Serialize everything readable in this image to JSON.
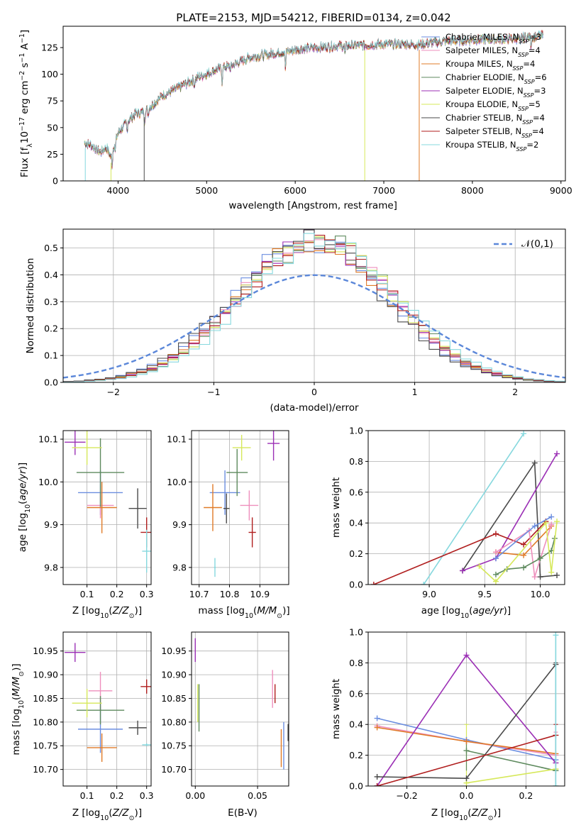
{
  "figure_title": "PLATE=2153, MJD=54212, FIBERID=0134, z=0.042",
  "colors": {
    "Chabrier MILES": "#6b8ee0",
    "Salpeter MILES": "#ee8fbd",
    "Kroupa MILES": "#e07b28",
    "Chabrier ELODIE": "#5e8a5e",
    "Salpeter ELODIE": "#9b2fb5",
    "Kroupa ELODIE": "#d6e85a",
    "Chabrier STELIB": "#4a4a4a",
    "Salpeter STELIB": "#b01e1e",
    "Kroupa STELIB": "#86d8de"
  },
  "models": [
    "Chabrier MILES",
    "Salpeter MILES",
    "Kroupa MILES",
    "Chabrier ELODIE",
    "Salpeter ELODIE",
    "Kroupa ELODIE",
    "Chabrier STELIB",
    "Salpeter STELIB",
    "Kroupa STELIB"
  ],
  "chart_data": [
    {
      "id": "spectrum",
      "type": "line",
      "xlabel": "wavelength [Angstrom, rest frame]",
      "ylabel": "Flux [f_λ10^-17 erg cm^-2 s^-1 A^-1]",
      "xlim": [
        3380,
        9050
      ],
      "ylim": [
        0,
        145
      ],
      "xticks": [
        4000,
        5000,
        6000,
        7000,
        8000,
        9000
      ],
      "yticks": [
        0,
        25,
        50,
        75,
        100,
        125
      ],
      "legend_position": "upper-right",
      "legend": [
        {
          "model": "Chabrier MILES",
          "label": "Chabrier MILES, N",
          "sub": "SSP",
          "tail": "=3"
        },
        {
          "model": "Salpeter MILES",
          "label": "Salpeter MILES, N",
          "sub": "SSP",
          "tail": "=4"
        },
        {
          "model": "Kroupa MILES",
          "label": "Kroupa MILES, N",
          "sub": "SSP",
          "tail": "=4"
        },
        {
          "model": "Chabrier ELODIE",
          "label": "Chabrier ELODIE, N",
          "sub": "SSP",
          "tail": "=6"
        },
        {
          "model": "Salpeter ELODIE",
          "label": "Salpeter ELODIE, N",
          "sub": "SSP",
          "tail": "=3"
        },
        {
          "model": "Kroupa ELODIE",
          "label": "Kroupa ELODIE, N",
          "sub": "SSP",
          "tail": "=5"
        },
        {
          "model": "Chabrier STELIB",
          "label": "Chabrier STELIB, N",
          "sub": "SSP",
          "tail": "=4"
        },
        {
          "model": "Salpeter STELIB",
          "label": "Salpeter STELIB, N",
          "sub": "SSP",
          "tail": "=4"
        },
        {
          "model": "Kroupa STELIB",
          "label": "Kroupa STELIB, N",
          "sub": "SSP",
          "tail": "=2"
        }
      ],
      "continuum_points": [
        [
          3620,
          36
        ],
        [
          3700,
          33
        ],
        [
          3800,
          27
        ],
        [
          3870,
          31
        ],
        [
          3920,
          22
        ],
        [
          3960,
          35
        ],
        [
          4000,
          45
        ],
        [
          4100,
          55
        ],
        [
          4200,
          63
        ],
        [
          4300,
          65
        ],
        [
          4400,
          72
        ],
        [
          4500,
          80
        ],
        [
          4700,
          88
        ],
        [
          4900,
          97
        ],
        [
          5100,
          104
        ],
        [
          5300,
          109
        ],
        [
          5500,
          116
        ],
        [
          5800,
          120
        ],
        [
          6100,
          124
        ],
        [
          6400,
          126
        ],
        [
          6700,
          127
        ],
        [
          7000,
          128
        ],
        [
          7400,
          128
        ],
        [
          7700,
          131
        ],
        [
          8000,
          132
        ],
        [
          8400,
          133
        ],
        [
          8800,
          136
        ]
      ],
      "absorption_features": [
        [
          3934,
          12
        ],
        [
          3969,
          10
        ],
        [
          4102,
          8
        ],
        [
          4300,
          10
        ],
        [
          4340,
          6
        ],
        [
          4861,
          6
        ],
        [
          5175,
          14
        ],
        [
          5270,
          6
        ],
        [
          5890,
          18
        ],
        [
          6563,
          8
        ],
        [
          8542,
          8
        ],
        [
          8662,
          8
        ]
      ],
      "vertical_spikes": [
        {
          "x": 3630,
          "model": "Kroupa STELIB"
        },
        {
          "x": 3920,
          "model": "Kroupa ELODIE"
        },
        {
          "x": 4295,
          "model": "Chabrier STELIB"
        },
        {
          "x": 6785,
          "model": "Kroupa ELODIE"
        },
        {
          "x": 7400,
          "model": "Kroupa MILES"
        }
      ]
    },
    {
      "id": "residuals",
      "type": "step-histogram",
      "xlabel": "(data-model)/error",
      "ylabel": "Normed distribution",
      "xlim": [
        -2.5,
        2.5
      ],
      "ylim": [
        0,
        0.57
      ],
      "xticks": [
        -2,
        -1,
        0,
        1,
        2
      ],
      "yticks": [
        0.0,
        0.1,
        0.2,
        0.3,
        0.4,
        0.5
      ],
      "bins": 50,
      "model_shift": [
        -0.05,
        0.02,
        -0.02,
        0.05,
        0.0,
        0.03,
        -0.06,
        0.04,
        0.1
      ],
      "reference_curve": {
        "label": "𝒩(0,1)",
        "mean": 0,
        "sigma": 1,
        "color": "#5b87d9",
        "style": "dashed"
      },
      "legend_position": "upper-right"
    },
    {
      "id": "age-vs-Z",
      "type": "errorbar",
      "xlabel": "Z [log10(Z/Z⊙)]",
      "ylabel": "age  [log10(age/yr)]",
      "xlim": [
        0.02,
        0.315
      ],
      "ylim": [
        9.76,
        10.12
      ],
      "xticks": [
        0.1,
        0.2,
        0.3
      ],
      "yticks": [
        9.8,
        9.9,
        10.0,
        10.1
      ],
      "points": [
        {
          "model": "Chabrier MILES",
          "x": 0.145,
          "xerr": 0.075,
          "y": 9.975,
          "yerr": 0.052
        },
        {
          "model": "Salpeter MILES",
          "x": 0.145,
          "xerr": 0.045,
          "y": 9.945,
          "yerr": 0.03
        },
        {
          "model": "Kroupa MILES",
          "x": 0.15,
          "xerr": 0.05,
          "y": 9.94,
          "yerr": 0.06
        },
        {
          "model": "Chabrier ELODIE",
          "x": 0.145,
          "xerr": 0.08,
          "y": 10.022,
          "yerr": 0.08
        },
        {
          "model": "Salpeter ELODIE",
          "x": 0.06,
          "xerr": 0.035,
          "y": 10.093,
          "yerr": 0.03
        },
        {
          "model": "Kroupa ELODIE",
          "x": 0.1,
          "xerr": 0.05,
          "y": 10.08,
          "yerr": 0.04
        },
        {
          "model": "Chabrier STELIB",
          "x": 0.27,
          "xerr": 0.03,
          "y": 9.938,
          "yerr": 0.047
        },
        {
          "model": "Salpeter STELIB",
          "x": 0.3,
          "xerr": 0.02,
          "y": 9.882,
          "yerr": 0.035
        },
        {
          "model": "Kroupa STELIB",
          "x": 0.3,
          "xerr": 0.015,
          "y": 9.838,
          "yerr": 0.05
        }
      ]
    },
    {
      "id": "age-vs-mass",
      "type": "errorbar",
      "xlabel": "mass [log10(M/M⊙)]",
      "ylabel": "",
      "xlim": [
        10.675,
        10.995
      ],
      "ylim": [
        9.76,
        10.12
      ],
      "xticks": [
        10.7,
        10.8,
        10.9
      ],
      "yticks": [
        9.8,
        9.9,
        10.0,
        10.1
      ],
      "points": [
        {
          "model": "Chabrier MILES",
          "x": 10.785,
          "xerr": 0.05,
          "y": 9.975,
          "yerr": 0.052
        },
        {
          "model": "Salpeter MILES",
          "x": 10.865,
          "xerr": 0.03,
          "y": 9.945,
          "yerr": 0.035
        },
        {
          "model": "Kroupa MILES",
          "x": 10.745,
          "xerr": 0.03,
          "y": 9.94,
          "yerr": 0.055
        },
        {
          "model": "Chabrier ELODIE",
          "x": 10.825,
          "xerr": 0.035,
          "y": 10.022,
          "yerr": 0.055
        },
        {
          "model": "Salpeter ELODIE",
          "x": 10.945,
          "xerr": 0.02,
          "y": 10.09,
          "yerr": 0.04
        },
        {
          "model": "Kroupa ELODIE",
          "x": 10.84,
          "xerr": 0.03,
          "y": 10.08,
          "yerr": 0.03
        },
        {
          "model": "Chabrier STELIB",
          "x": 10.79,
          "xerr": 0.01,
          "y": 9.938,
          "yerr": 0.035
        },
        {
          "model": "Salpeter STELIB",
          "x": 10.875,
          "xerr": 0.012,
          "y": 9.882,
          "yerr": 0.035
        },
        {
          "model": "Kroupa STELIB",
          "x": 10.752,
          "xerr": 0.003,
          "y": 9.8,
          "yerr": 0.022
        }
      ]
    },
    {
      "id": "weight-vs-age",
      "type": "line",
      "xlabel": "age  [log10(age/yr)]",
      "ylabel": "mass weight",
      "xlim": [
        8.45,
        10.22
      ],
      "ylim": [
        0.0,
        1.0
      ],
      "xticks": [
        9.0,
        9.5,
        10.0
      ],
      "yticks": [
        0.0,
        0.2,
        0.4,
        0.6,
        0.8,
        1.0
      ],
      "series": [
        {
          "model": "Kroupa STELIB",
          "x": [
            8.95,
            9.85
          ],
          "y": [
            0.0,
            0.98
          ]
        },
        {
          "model": "Chabrier STELIB",
          "x": [
            9.3,
            9.95,
            10.0,
            10.15
          ],
          "y": [
            0.09,
            0.79,
            0.05,
            0.06
          ]
        },
        {
          "model": "Salpeter ELODIE",
          "x": [
            9.3,
            9.6,
            10.15
          ],
          "y": [
            0.09,
            0.17,
            0.85
          ]
        },
        {
          "model": "Salpeter STELIB",
          "x": [
            8.5,
            9.6,
            9.85,
            10.05
          ],
          "y": [
            0.0,
            0.33,
            0.26,
            0.41
          ]
        },
        {
          "model": "Kroupa MILES",
          "x": [
            9.6,
            9.85,
            10.1
          ],
          "y": [
            0.21,
            0.19,
            0.38
          ]
        },
        {
          "model": "Salpeter MILES",
          "x": [
            9.6,
            9.9,
            9.95,
            10.1
          ],
          "y": [
            0.21,
            0.35,
            0.05,
            0.39
          ]
        },
        {
          "model": "Chabrier MILES",
          "x": [
            9.6,
            9.95,
            10.1
          ],
          "y": [
            0.17,
            0.38,
            0.44
          ]
        },
        {
          "model": "Chabrier ELODIE",
          "x": [
            9.6,
            9.7,
            9.85,
            10.0,
            10.1,
            10.13
          ],
          "y": [
            0.065,
            0.1,
            0.11,
            0.17,
            0.22,
            0.3
          ]
        },
        {
          "model": "Kroupa ELODIE",
          "x": [
            9.45,
            9.6,
            10.05,
            10.1,
            10.15
          ],
          "y": [
            0.12,
            0.02,
            0.4,
            0.08,
            0.41
          ]
        }
      ]
    },
    {
      "id": "mass-vs-Z",
      "type": "errorbar",
      "xlabel": "Z [log10(Z/Z⊙)]",
      "ylabel": "mass [log10(M/M⊙)]",
      "xlim": [
        0.02,
        0.315
      ],
      "ylim": [
        10.665,
        10.99
      ],
      "xticks": [
        0.1,
        0.2,
        0.3
      ],
      "yticks": [
        10.7,
        10.75,
        10.8,
        10.85,
        10.9,
        10.95
      ],
      "points": [
        {
          "model": "Chabrier MILES",
          "x": 0.145,
          "xerr": 0.075,
          "y": 10.785,
          "yerr": 0.05
        },
        {
          "model": "Salpeter MILES",
          "x": 0.145,
          "xerr": 0.04,
          "y": 10.866,
          "yerr": 0.04
        },
        {
          "model": "Kroupa MILES",
          "x": 0.15,
          "xerr": 0.05,
          "y": 10.746,
          "yerr": 0.03
        },
        {
          "model": "Chabrier ELODIE",
          "x": 0.145,
          "xerr": 0.08,
          "y": 10.825,
          "yerr": 0.03
        },
        {
          "model": "Salpeter ELODIE",
          "x": 0.06,
          "xerr": 0.035,
          "y": 10.947,
          "yerr": 0.02
        },
        {
          "model": "Kroupa ELODIE",
          "x": 0.1,
          "xerr": 0.05,
          "y": 10.84,
          "yerr": 0.03
        },
        {
          "model": "Chabrier STELIB",
          "x": 0.27,
          "xerr": 0.03,
          "y": 10.788,
          "yerr": 0.015
        },
        {
          "model": "Salpeter STELIB",
          "x": 0.3,
          "xerr": 0.02,
          "y": 10.875,
          "yerr": 0.015
        },
        {
          "model": "Kroupa STELIB",
          "x": 0.3,
          "xerr": 0.015,
          "y": 10.752,
          "yerr": 0.003
        }
      ]
    },
    {
      "id": "mass-vs-EBV",
      "type": "errorbar",
      "xlabel": "E(B-V)",
      "ylabel": "",
      "xlim": [
        -0.003,
        0.075
      ],
      "ylim": [
        10.665,
        10.99
      ],
      "xticks": [
        0.0,
        0.05
      ],
      "yticks": [
        10.7,
        10.75,
        10.8,
        10.85,
        10.9,
        10.95
      ],
      "points": [
        {
          "model": "Chabrier MILES",
          "x": 0.071,
          "xerr": 0.0,
          "y": 10.75,
          "yerr": 0.05
        },
        {
          "model": "Salpeter MILES",
          "x": 0.062,
          "xerr": 0.0,
          "y": 10.87,
          "yerr": 0.04
        },
        {
          "model": "Kroupa MILES",
          "x": 0.069,
          "xerr": 0.0,
          "y": 10.745,
          "yerr": 0.04
        },
        {
          "model": "Chabrier ELODIE",
          "x": 0.003,
          "xerr": 0.0,
          "y": 10.83,
          "yerr": 0.05
        },
        {
          "model": "Salpeter ELODIE",
          "x": 0.0,
          "xerr": 0.0,
          "y": 10.952,
          "yerr": 0.025
        },
        {
          "model": "Kroupa ELODIE",
          "x": 0.002,
          "xerr": 0.0,
          "y": 10.84,
          "yerr": 0.04
        },
        {
          "model": "Chabrier STELIB",
          "x": 0.0745,
          "xerr": 0.0,
          "y": 10.778,
          "yerr": 0.018
        },
        {
          "model": "Salpeter STELIB",
          "x": 0.064,
          "xerr": 0.0,
          "y": 10.86,
          "yerr": 0.02
        },
        {
          "model": "Kroupa STELIB",
          "x": 0.0755,
          "xerr": 0.0,
          "y": 10.752,
          "yerr": 0.003
        }
      ]
    },
    {
      "id": "weight-vs-Z",
      "type": "line",
      "xlabel": "Z [log10(Z/Z⊙)]",
      "ylabel": "mass weight",
      "xlim": [
        -0.33,
        0.33
      ],
      "ylim": [
        0.0,
        1.0
      ],
      "xticks": [
        -0.2,
        0.0,
        0.2
      ],
      "yticks": [
        0.0,
        0.2,
        0.4,
        0.6,
        0.8,
        1.0
      ],
      "series": [
        {
          "model": "Chabrier MILES",
          "x": [
            -0.3,
            0.0,
            0.3
          ],
          "y": [
            0.44,
            0.3,
            0.17
          ]
        },
        {
          "model": "Salpeter MILES",
          "x": [
            -0.3,
            0.0,
            0.3
          ],
          "y": [
            0.39,
            0.29,
            0.2
          ]
        },
        {
          "model": "Kroupa MILES",
          "x": [
            -0.3,
            0.0,
            0.3
          ],
          "y": [
            0.38,
            0.29,
            0.21
          ]
        },
        {
          "model": "Chabrier ELODIE",
          "x": [
            0.0,
            0.3
          ],
          "y": [
            0.23,
            0.1
          ]
        },
        {
          "model": "Salpeter ELODIE",
          "x": [
            -0.3,
            0.0,
            0.3
          ],
          "y": [
            0.0,
            0.85,
            0.15
          ]
        },
        {
          "model": "Kroupa ELODIE",
          "x": [
            0.0,
            0.3
          ],
          "y": [
            0.02,
            0.11
          ]
        },
        {
          "model": "Chabrier STELIB",
          "x": [
            -0.3,
            0.0,
            0.3
          ],
          "y": [
            0.06,
            0.05,
            0.79
          ]
        },
        {
          "model": "Salpeter STELIB",
          "x": [
            -0.3,
            0.3
          ],
          "y": [
            0.0,
            0.33
          ]
        },
        {
          "model": "Kroupa STELIB",
          "x": [
            0.3,
            0.3
          ],
          "y": [
            0.0,
            0.98
          ]
        }
      ],
      "errorbars": [
        {
          "model": "Kroupa STELIB",
          "x": 0.3,
          "y": 0.5,
          "yerr": 0.5
        },
        {
          "model": "Kroupa ELODIE",
          "x": 0.0,
          "y": 0.2,
          "yerr": 0.2
        },
        {
          "model": "Chabrier ELODIE",
          "x": 0.0,
          "y": 0.2,
          "yerr": 0.1
        },
        {
          "model": "Salpeter STELIB",
          "x": 0.3,
          "y": 0.22,
          "yerr": 0.18
        },
        {
          "model": "Salpeter MILES",
          "x": 0.3,
          "y": 0.2,
          "yerr": 0.15
        },
        {
          "model": "Chabrier STELIB",
          "x": 0.3,
          "y": 0.4,
          "yerr": 0.4
        }
      ]
    }
  ]
}
